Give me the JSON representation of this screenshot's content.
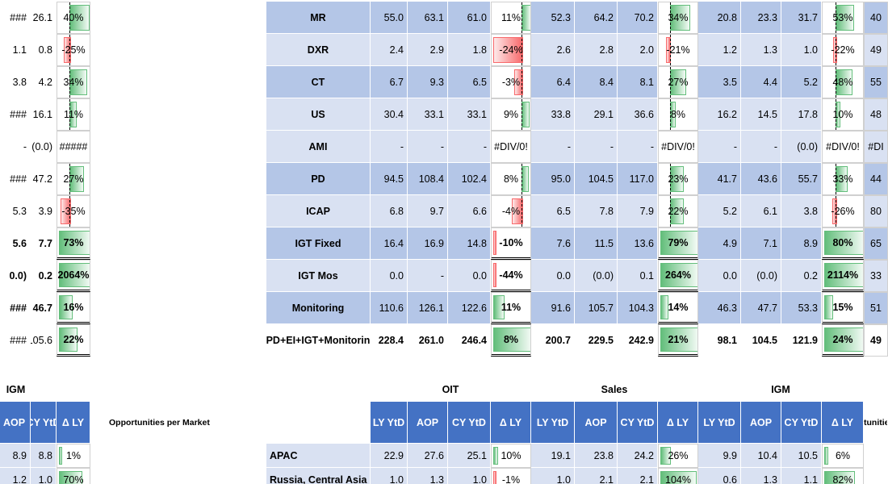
{
  "left_partial": {
    "rows": [
      [
        "###",
        "26.1",
        "40%"
      ],
      [
        "1.1",
        "0.8",
        "-25%"
      ],
      [
        "3.8",
        "4.2",
        "34%"
      ],
      [
        "###",
        "16.1",
        "11%"
      ],
      [
        "-",
        "(0.0)",
        "#####"
      ],
      [
        "###",
        "47.2",
        "27%"
      ],
      [
        "5.3",
        "3.9",
        "-35%"
      ],
      [
        "5.6",
        "7.7",
        "73%"
      ],
      [
        "0.0)",
        "0.2",
        "2064%"
      ],
      [
        "###",
        "46.7",
        "16%"
      ],
      [
        "###",
        "105.6",
        "22%"
      ]
    ],
    "lower": {
      "title": "IGM",
      "headers": [
        "AOP",
        "CY YtD",
        "Δ LY"
      ],
      "rows": [
        [
          "8.9",
          "8.8",
          "1%"
        ],
        [
          "1.2",
          "1.0",
          "70%"
        ]
      ]
    }
  },
  "main_table": {
    "rows": [
      [
        "MR",
        "55.0",
        "63.1",
        "61.0",
        "11%",
        "52.3",
        "64.2",
        "70.2",
        "34%",
        "20.8",
        "23.3",
        "31.7",
        "53%",
        "40"
      ],
      [
        "DXR",
        "2.4",
        "2.9",
        "1.8",
        "-24%",
        "2.6",
        "2.8",
        "2.0",
        "-21%",
        "1.2",
        "1.3",
        "1.0",
        "-22%",
        "49"
      ],
      [
        "CT",
        "6.7",
        "9.3",
        "6.5",
        "-3%",
        "6.4",
        "8.4",
        "8.1",
        "27%",
        "3.5",
        "4.4",
        "5.2",
        "48%",
        "55"
      ],
      [
        "US",
        "30.4",
        "33.1",
        "33.1",
        "9%",
        "33.8",
        "29.1",
        "36.6",
        "8%",
        "16.2",
        "14.5",
        "17.8",
        "10%",
        "48"
      ],
      [
        "AMI",
        "-",
        "-",
        "-",
        "#DIV/0!",
        "-",
        "-",
        "-",
        "#DIV/0!",
        "-",
        "-",
        "(0.0)",
        "#DIV/0!",
        "#DI"
      ],
      [
        "PD",
        "94.5",
        "108.4",
        "102.4",
        "8%",
        "95.0",
        "104.5",
        "117.0",
        "23%",
        "41.7",
        "43.6",
        "55.7",
        "33%",
        "44"
      ],
      [
        "ICAP",
        "6.8",
        "9.7",
        "6.6",
        "-4%",
        "6.5",
        "7.8",
        "7.9",
        "22%",
        "5.2",
        "6.1",
        "3.8",
        "-26%",
        "80"
      ],
      [
        "IGT Fixed",
        "16.4",
        "16.9",
        "14.8",
        "-10%",
        "7.6",
        "11.5",
        "13.6",
        "79%",
        "4.9",
        "7.1",
        "8.9",
        "80%",
        "65"
      ],
      [
        "IGT Mos",
        "0.0",
        "-",
        "0.0",
        "-44%",
        "0.0",
        "(0.0)",
        "0.1",
        "264%",
        "0.0",
        "(0.0)",
        "0.2",
        "2114%",
        "33"
      ],
      [
        "Monitoring",
        "110.6",
        "126.1",
        "122.6",
        "11%",
        "91.6",
        "105.7",
        "104.3",
        "14%",
        "46.3",
        "47.7",
        "53.3",
        "15%",
        "51"
      ],
      [
        "PD+EI+IGT+Monitorin",
        "228.4",
        "261.0",
        "246.4",
        "8%",
        "200.7",
        "229.5",
        "242.9",
        "21%",
        "98.1",
        "104.5",
        "121.9",
        "24%",
        "49"
      ]
    ]
  },
  "lower_table": {
    "title": "Opportunities per Market",
    "groups": [
      "OIT",
      "Sales",
      "IGM"
    ],
    "headers": [
      "LY YtD",
      "AOP",
      "CY YtD",
      "Δ LY",
      "LY YtD",
      "AOP",
      "CY YtD",
      "Δ LY",
      "LY YtD",
      "AOP",
      "CY YtD",
      "Δ LY"
    ],
    "right_partial_header": "tunitie",
    "rows": [
      [
        "APAC",
        "22.9",
        "27.6",
        "25.1",
        "10%",
        "19.1",
        "23.8",
        "24.2",
        "26%",
        "9.9",
        "10.4",
        "10.5",
        "6%"
      ],
      [
        "Russia, Central Asia",
        "1.0",
        "1.3",
        "1.0",
        "-1%",
        "1.0",
        "2.1",
        "2.1",
        "104%",
        "0.6",
        "1.3",
        "1.1",
        "82%"
      ]
    ]
  }
}
